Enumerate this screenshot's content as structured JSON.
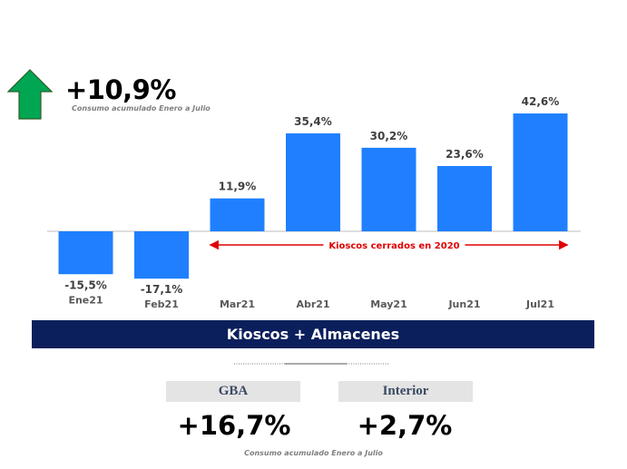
{
  "headline": {
    "value": "+10,9%",
    "subtitle": "Consumo acumulado Enero a Julio",
    "arrow_color": "#00a651"
  },
  "chart_data": {
    "type": "bar",
    "categories": [
      "Ene21",
      "Feb21",
      "Mar21",
      "Abr21",
      "May21",
      "Jun21",
      "Jul21"
    ],
    "values": [
      -15.5,
      -17.1,
      11.9,
      35.4,
      30.2,
      23.6,
      42.6
    ],
    "value_labels": [
      "-15,5%",
      "-17,1%",
      "11,9%",
      "35,4%",
      "30,2%",
      "23,6%",
      "42,6%"
    ],
    "bar_color": "#1f7fff",
    "annotation": {
      "text": "Kioscos cerrados en 2020",
      "from_category": "Mar21",
      "to_category": "Jul21",
      "color": "#e00000"
    },
    "title": "",
    "xlabel": "",
    "ylabel": "",
    "grid": false
  },
  "band": {
    "label": "Kioscos + Almacenes",
    "color": "#0b1f5c"
  },
  "regions": {
    "gba": {
      "label": "GBA",
      "value": "+16,7%"
    },
    "interior": {
      "label": "Interior",
      "value": "+2,7%"
    }
  },
  "bottom_subtitle": "Consumo acumulado Enero a Julio"
}
